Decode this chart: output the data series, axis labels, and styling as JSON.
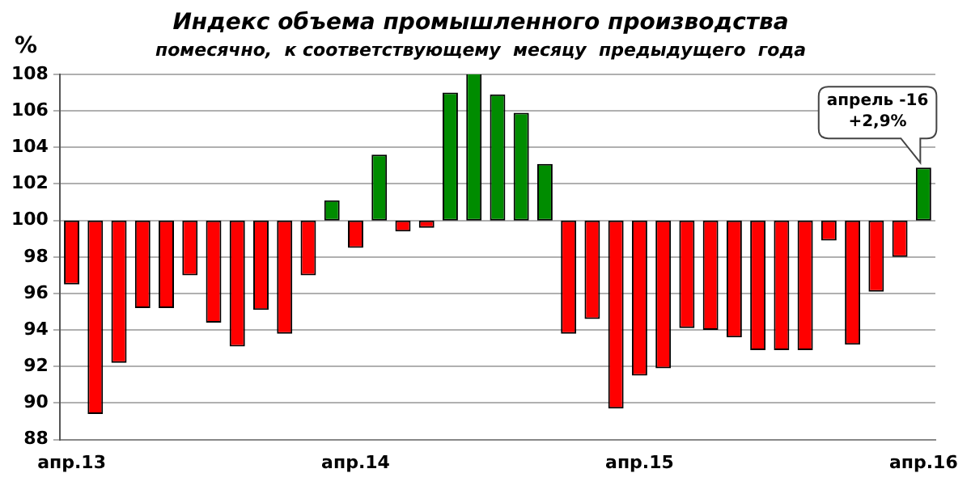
{
  "chart_data": {
    "type": "bar",
    "title": "Индекс объема промышленного производства",
    "subtitle": "помесячно,  к соответствующему  месяцу  предыдущего  года",
    "ylabel": "%",
    "categories": [
      "апр.13",
      null,
      null,
      null,
      null,
      null,
      null,
      null,
      null,
      null,
      null,
      null,
      "апр.14",
      null,
      null,
      null,
      null,
      null,
      null,
      null,
      null,
      null,
      null,
      null,
      "апр.15",
      null,
      null,
      null,
      null,
      null,
      null,
      null,
      null,
      null,
      null,
      null,
      "апр.16"
    ],
    "base": [
      100,
      100,
      100,
      100,
      100,
      100,
      100,
      100,
      100,
      100,
      100,
      100,
      100,
      100,
      100,
      100,
      100,
      100,
      100,
      100,
      100,
      100,
      100,
      100,
      100,
      100,
      100,
      100,
      100,
      100,
      100,
      100,
      100,
      100,
      100,
      100,
      100
    ],
    "values": [
      -3.5,
      -10.6,
      -7.8,
      -4.8,
      -4.8,
      -3.0,
      -5.6,
      -6.9,
      -4.9,
      -6.2,
      -3.0,
      1.1,
      -1.5,
      3.6,
      -0.6,
      -0.4,
      7.0,
      8.1,
      6.9,
      5.9,
      3.1,
      -6.2,
      -5.4,
      -10.3,
      -8.5,
      -8.1,
      -5.9,
      -6.0,
      -6.4,
      -7.1,
      -7.1,
      -7.1,
      -1.1,
      -6.8,
      -3.9,
      -2.0,
      2.9
    ],
    "colors": [
      "#ff0000",
      "#ff0000",
      "#ff0000",
      "#ff0000",
      "#ff0000",
      "#ff0000",
      "#ff0000",
      "#ff0000",
      "#ff0000",
      "#ff0000",
      "#ff0000",
      "#008c00",
      "#ff0000",
      "#008c00",
      "#ff0000",
      "#ff0000",
      "#008c00",
      "#008c00",
      "#008c00",
      "#008c00",
      "#008c00",
      "#ff0000",
      "#ff0000",
      "#ff0000",
      "#ff0000",
      "#ff0000",
      "#ff0000",
      "#ff0000",
      "#ff0000",
      "#ff0000",
      "#ff0000",
      "#ff0000",
      "#ff0000",
      "#ff0000",
      "#ff0000",
      "#ff0000",
      "#008c00"
    ],
    "ylim": [
      88,
      108
    ],
    "yticks": [
      88,
      90,
      92,
      94,
      96,
      98,
      100,
      102,
      104,
      106,
      108
    ],
    "grid": "y",
    "legend": false,
    "annotations": [
      {
        "text": "апрель -16\n+2,9%",
        "x": "апр.16",
        "y": 102.9
      }
    ]
  }
}
